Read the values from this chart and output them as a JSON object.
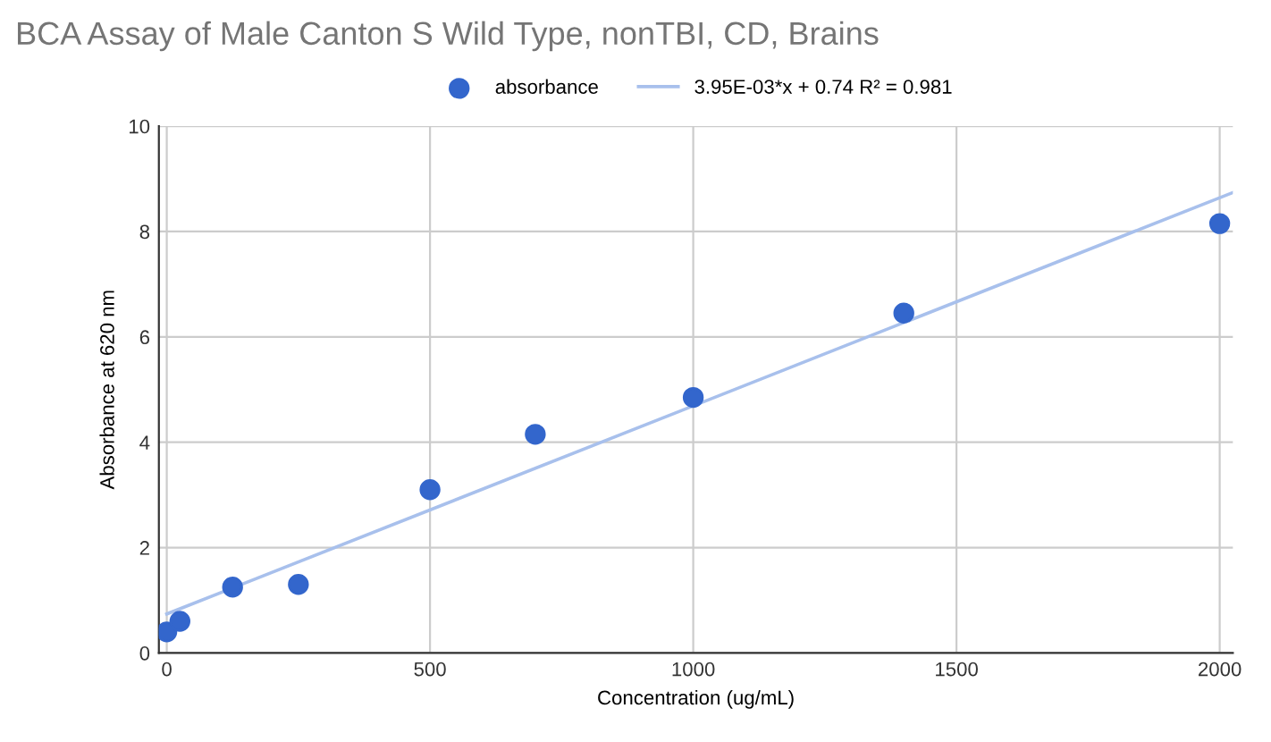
{
  "chart_data": {
    "type": "scatter",
    "title": "BCA Assay of Male Canton S Wild Type, nonTBI, CD, Brains",
    "xlabel": "Concentration (ug/mL)",
    "ylabel": "Absorbance at 620 nm",
    "series": [
      {
        "name": "absorbance",
        "marker": "circle",
        "color": "#3366cc",
        "x": [
          0,
          25,
          125,
          250,
          500,
          700,
          1000,
          1400,
          2000
        ],
        "values": [
          0.4,
          0.6,
          1.25,
          1.3,
          3.1,
          4.15,
          4.85,
          6.45,
          8.15
        ]
      },
      {
        "name": "3.95E-03*x + 0.74 R² = 0.981",
        "type": "line",
        "marker": "none",
        "color": "#a8c0ec",
        "x": [
          0,
          2025
        ],
        "values": [
          0.74,
          8.74
        ]
      }
    ],
    "xlim": [
      -15,
      2025
    ],
    "xticks": [
      0,
      500,
      1000,
      1500,
      2000
    ],
    "ylim": [
      0,
      10
    ],
    "yticks": [
      0,
      2,
      4,
      6,
      8,
      10
    ],
    "grid": true,
    "legend": "top"
  }
}
